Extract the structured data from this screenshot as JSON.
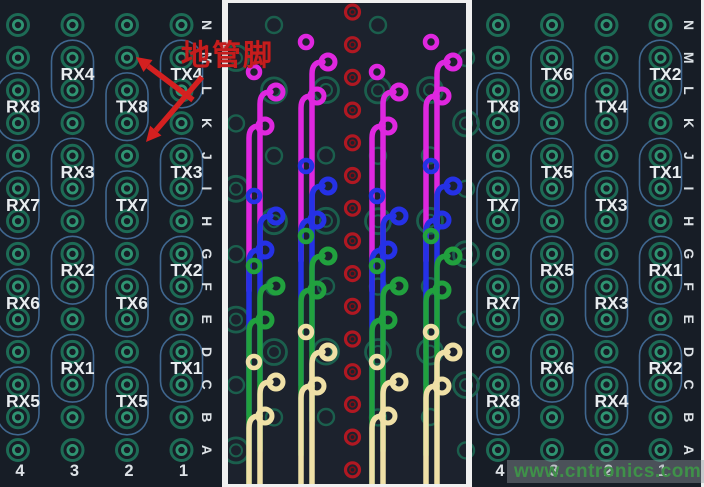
{
  "annotation": {
    "text": "地管脚",
    "meaning": "ground pin callout",
    "color": "#c51d1d"
  },
  "watermark": {
    "text": "www.cntronics.com",
    "color": "#3f9149"
  },
  "left_panel": {
    "column_numbers": [
      "4",
      "3",
      "2",
      "1"
    ],
    "row_letters": [
      "N",
      "M",
      "L",
      "K",
      "J",
      "I",
      "H",
      "G",
      "F",
      "E",
      "D",
      "C",
      "B",
      "A"
    ],
    "pairs": [
      {
        "label": "RX8",
        "col": 0,
        "row": 2
      },
      {
        "label": "RX7",
        "col": 0,
        "row": 5
      },
      {
        "label": "RX6",
        "col": 0,
        "row": 8
      },
      {
        "label": "RX5",
        "col": 0,
        "row": 11
      },
      {
        "label": "RX4",
        "col": 1,
        "row": 1
      },
      {
        "label": "RX3",
        "col": 1,
        "row": 4
      },
      {
        "label": "RX2",
        "col": 1,
        "row": 7
      },
      {
        "label": "RX1",
        "col": 1,
        "row": 10
      },
      {
        "label": "TX8",
        "col": 2,
        "row": 2
      },
      {
        "label": "TX7",
        "col": 2,
        "row": 5
      },
      {
        "label": "TX6",
        "col": 2,
        "row": 8
      },
      {
        "label": "TX5",
        "col": 2,
        "row": 11
      },
      {
        "label": "TX4",
        "col": 3,
        "row": 1
      },
      {
        "label": "TX3",
        "col": 3,
        "row": 4
      },
      {
        "label": "TX2",
        "col": 3,
        "row": 7
      },
      {
        "label": "TX1",
        "col": 3,
        "row": 10
      }
    ]
  },
  "right_panel": {
    "column_numbers": [
      "4",
      "3",
      "2",
      "1"
    ],
    "row_letters": [
      "N",
      "M",
      "L",
      "K",
      "J",
      "I",
      "H",
      "G",
      "F",
      "E",
      "D",
      "C",
      "B",
      "A"
    ],
    "pairs": [
      {
        "label": "TX8",
        "col": 0,
        "row": 2
      },
      {
        "label": "TX7",
        "col": 0,
        "row": 5
      },
      {
        "label": "RX7",
        "col": 0,
        "row": 8
      },
      {
        "label": "RX8",
        "col": 0,
        "row": 11
      },
      {
        "label": "TX6",
        "col": 1,
        "row": 1
      },
      {
        "label": "TX5",
        "col": 1,
        "row": 4
      },
      {
        "label": "RX5",
        "col": 1,
        "row": 7
      },
      {
        "label": "RX6",
        "col": 1,
        "row": 10
      },
      {
        "label": "TX4",
        "col": 2,
        "row": 2
      },
      {
        "label": "TX3",
        "col": 2,
        "row": 5
      },
      {
        "label": "RX3",
        "col": 2,
        "row": 8
      },
      {
        "label": "RX4",
        "col": 2,
        "row": 11
      },
      {
        "label": "TX2",
        "col": 3,
        "row": 1
      },
      {
        "label": "TX1",
        "col": 3,
        "row": 4
      },
      {
        "label": "RX1",
        "col": 3,
        "row": 7
      },
      {
        "label": "RX2",
        "col": 3,
        "row": 10
      }
    ]
  },
  "middle_panel": {
    "center_via_count": 15,
    "via_color": "#b01822",
    "trace_bands": [
      {
        "name": "pair-group-top",
        "color": "#df27df"
      },
      {
        "name": "pair-group-upper",
        "color": "#2531e6"
      },
      {
        "name": "pair-group-lower",
        "color": "#21a13e"
      },
      {
        "name": "pair-group-bottom",
        "color": "#efe0a6"
      }
    ]
  },
  "colors": {
    "panel_background": "#171d26",
    "middle_background": "#1c222d",
    "pad_ring": "#1d6b55",
    "pad_inner": "#2f9472",
    "deco_ring": "#1b5f4d",
    "oval_outline": "#40678f",
    "text": "#dde2e6",
    "divider": "#f0f0f0",
    "arrow_red": "#d42020"
  }
}
